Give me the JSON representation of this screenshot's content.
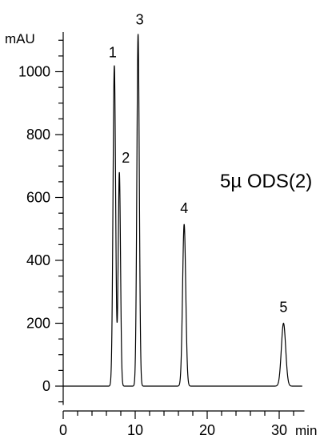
{
  "chart_data": {
    "type": "line",
    "title": "",
    "annotation": "5µ ODS(2)",
    "xlabel": "min",
    "ylabel": "mAU",
    "xlim": [
      0,
      33
    ],
    "ylim": [
      0,
      1100
    ],
    "x_ticks": [
      0,
      10,
      20,
      30
    ],
    "x_tick_labels": [
      "0",
      "10",
      "20",
      "30"
    ],
    "y_ticks": [
      0,
      200,
      400,
      600,
      800,
      1000
    ],
    "y_tick_labels": [
      "0",
      "200",
      "400",
      "600",
      "800",
      "1000"
    ],
    "grid": false,
    "line_color": "#000000",
    "peaks": [
      {
        "label": "1",
        "x": 7.1,
        "y": 1020
      },
      {
        "label": "2",
        "x": 7.8,
        "y": 680
      },
      {
        "label": "3",
        "x": 10.4,
        "y": 1120
      },
      {
        "label": "4",
        "x": 16.8,
        "y": 515
      },
      {
        "label": "5",
        "x": 30.6,
        "y": 200
      }
    ]
  }
}
